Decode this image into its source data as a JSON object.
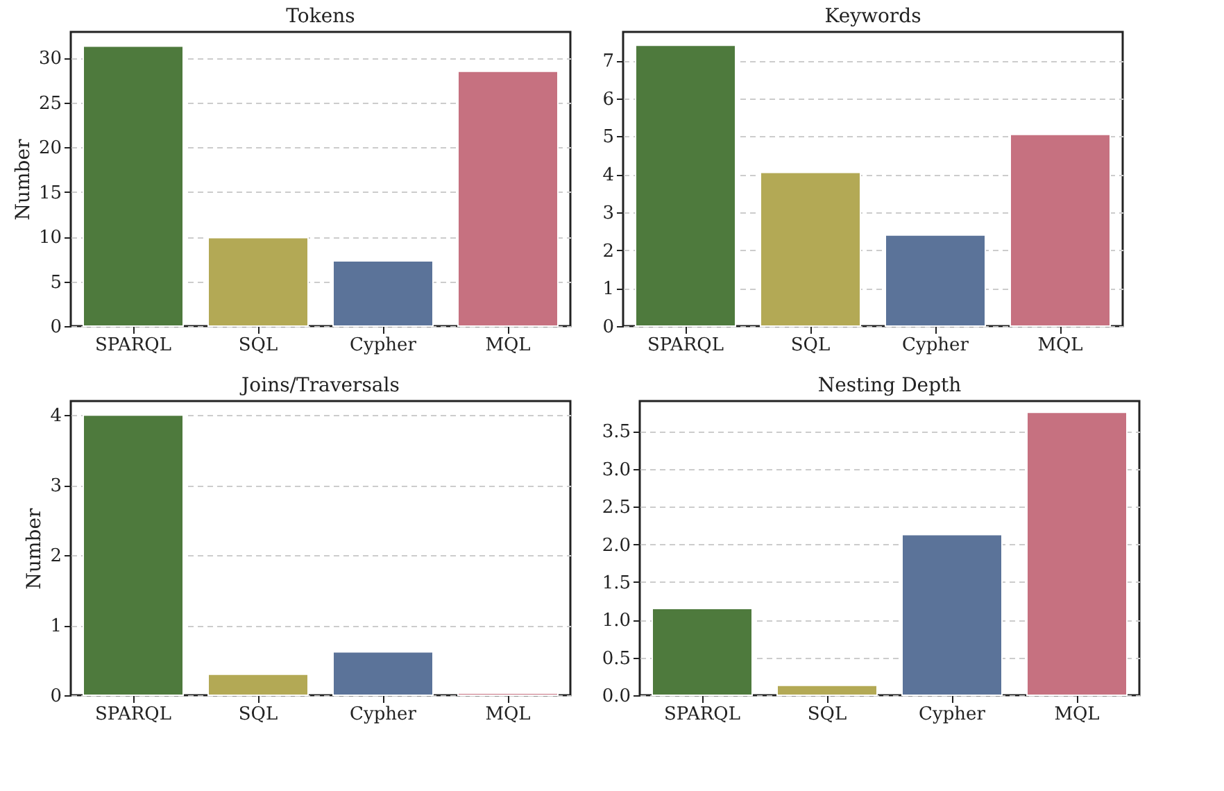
{
  "chart_data": [
    {
      "type": "bar",
      "title": "Tokens",
      "ylabel": "Number",
      "categories": [
        "SPARQL",
        "SQL",
        "Cypher",
        "MQL"
      ],
      "values": [
        31.3,
        9.9,
        7.3,
        28.5
      ],
      "colors": [
        "#4e7a3d",
        "#b3a955",
        "#5b7399",
        "#c67180"
      ],
      "ylim": [
        0,
        32.9
      ],
      "yticks": [
        0,
        5,
        10,
        15,
        20,
        25,
        30
      ],
      "grid": "y"
    },
    {
      "type": "bar",
      "title": "Keywords",
      "categories": [
        "SPARQL",
        "SQL",
        "Cypher",
        "MQL"
      ],
      "values": [
        7.4,
        4.05,
        2.4,
        5.05
      ],
      "colors": [
        "#4e7a3d",
        "#b3a955",
        "#5b7399",
        "#c67180"
      ],
      "ylim": [
        0,
        7.75
      ],
      "yticks": [
        0,
        1,
        2,
        3,
        4,
        5,
        6,
        7
      ],
      "grid": "y"
    },
    {
      "type": "bar",
      "title": "Joins/Traversals",
      "ylabel": "Number",
      "categories": [
        "SPARQL",
        "SQL",
        "Cypher",
        "MQL"
      ],
      "values": [
        4.0,
        0.3,
        0.62,
        0.03
      ],
      "colors": [
        "#4e7a3d",
        "#b3a955",
        "#5b7399",
        "#c67180"
      ],
      "ylim": [
        0,
        4.2
      ],
      "yticks": [
        0,
        1,
        2,
        3,
        4
      ],
      "grid": "y"
    },
    {
      "type": "bar",
      "title": "Nesting Depth",
      "categories": [
        "SPARQL",
        "SQL",
        "Cypher",
        "MQL"
      ],
      "values": [
        1.15,
        0.13,
        2.13,
        3.75
      ],
      "colors": [
        "#4e7a3d",
        "#b3a955",
        "#5b7399",
        "#c67180"
      ],
      "ylim": [
        0,
        3.9
      ],
      "yticks": [
        {
          "value": 0,
          "label": "0.0"
        },
        {
          "value": 0.5,
          "label": "0.5"
        },
        {
          "value": 1,
          "label": "1.0"
        },
        {
          "value": 1.5,
          "label": "1.5"
        },
        {
          "value": 2,
          "label": "2.0"
        },
        {
          "value": 2.5,
          "label": "2.5"
        },
        {
          "value": 3,
          "label": "3.0"
        },
        {
          "value": 3.5,
          "label": "3.5"
        }
      ],
      "grid": "y"
    }
  ]
}
